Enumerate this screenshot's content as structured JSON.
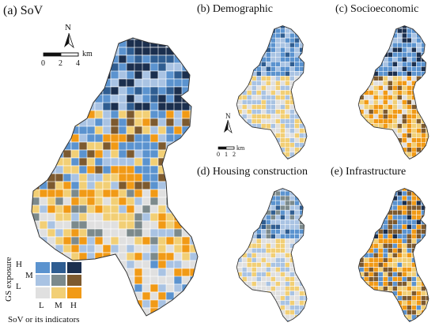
{
  "panels": [
    {
      "id": "a",
      "title": "(a) SoV"
    },
    {
      "id": "b",
      "title": "(b) Demographic"
    },
    {
      "id": "c",
      "title": "(c) Socioeconomic"
    },
    {
      "id": "d",
      "title": "(d) Housing construction"
    },
    {
      "id": "e",
      "title": "(e) Infrastructure"
    }
  ],
  "north_arrow": {
    "label": "N"
  },
  "scalebar_main": {
    "ticks": [
      "0",
      "2",
      "4"
    ],
    "unit": "km"
  },
  "scalebar_small": {
    "ticks": [
      "0",
      "1",
      "2"
    ],
    "unit": "km"
  },
  "legend": {
    "y_title": "GS exposure",
    "y_levels": [
      "L",
      "M",
      "H"
    ],
    "x_title": "SoV or its indicators",
    "x_levels": [
      "L",
      "M",
      "H"
    ],
    "colors": {
      "H": [
        "#5b93cf",
        "#2f5d91",
        "#1b2f4e"
      ],
      "M": [
        "#a9c3e3",
        "#7c8a8c",
        "#7d5a2f"
      ],
      "L": [
        "#e0e0e0",
        "#f2cf75",
        "#f19a16"
      ]
    }
  }
}
